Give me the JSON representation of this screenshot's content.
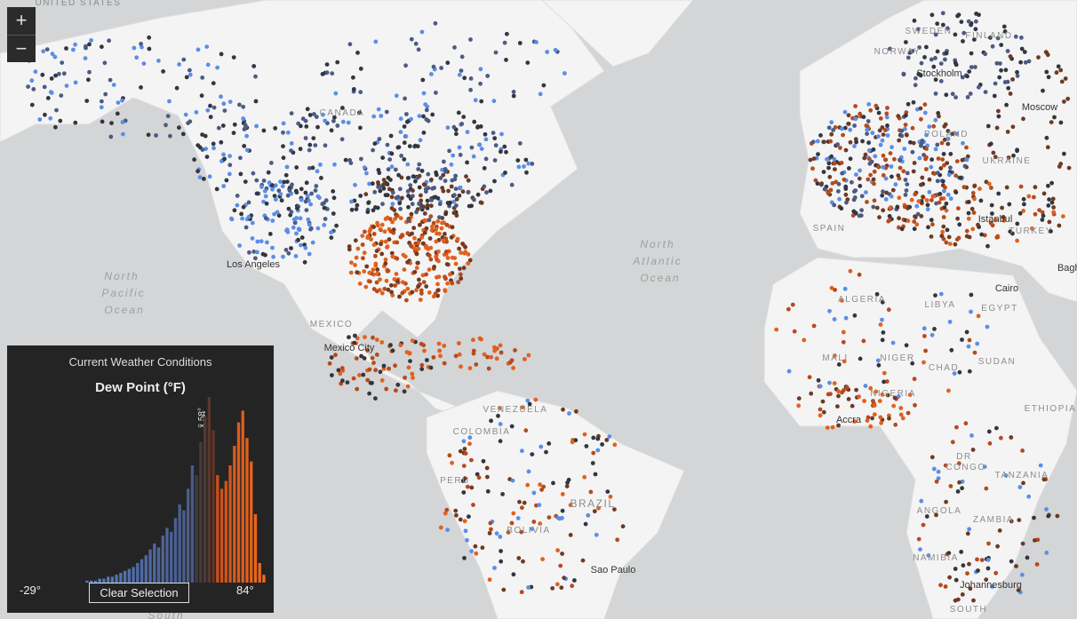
{
  "zoom": {
    "in": "+",
    "out": "−"
  },
  "map_labels": [
    "UNITED STATES",
    "CANADA",
    "North",
    "Pacific",
    "Ocean",
    "North",
    "Atlantic",
    "Ocean",
    "MEXICO",
    "Mexico City",
    "Los Angeles",
    "VENEZUELA",
    "COLOMBIA",
    "PERU",
    "BRAZIL",
    "BOLIVIA",
    "Sao Paulo",
    "SWEDEN",
    "FINLAND",
    "NORWAY",
    "Stockholm",
    "Moscow",
    "POLAND",
    "UKRAINE",
    "SPAIN",
    "Istanbul",
    "TURKEY",
    "ALGERIA",
    "LIBYA",
    "EGYPT",
    "Cairo",
    "MALI",
    "NIGER",
    "CHAD",
    "SUDAN",
    "NIGERIA",
    "ETHIOPIA",
    "Accra",
    "DR",
    "CONGO",
    "TANZANIA",
    "ANGOLA",
    "ZAMBIA",
    "NAMIBIA",
    "Johannesburg",
    "SOUTH",
    "South",
    "Baghdad"
  ],
  "widget": {
    "title": "Current Weather Conditions",
    "field": "Dew Point (°F)",
    "min_label": "-29°",
    "max_label": "84°",
    "mean_label": "x̄ 58°",
    "button": "Clear Selection",
    "histogram": {
      "bins": [
        -29,
        -27,
        -25,
        -23,
        -21,
        -19,
        -17,
        -15,
        -13,
        -11,
        -9,
        -7,
        -5,
        -3,
        -1,
        1,
        3,
        5,
        7,
        9,
        11,
        13,
        15,
        17,
        19,
        21,
        23,
        25,
        27,
        29,
        31,
        33,
        35,
        37,
        39,
        41,
        43,
        45,
        47,
        49,
        51,
        53,
        55,
        57,
        59,
        61,
        63,
        65,
        67,
        69,
        71,
        73,
        75,
        77,
        79,
        81,
        83,
        85
      ],
      "counts": [
        0,
        0,
        0,
        0,
        0,
        0,
        0,
        0,
        0,
        0,
        0,
        0,
        0,
        0,
        1,
        1,
        1,
        2,
        2,
        3,
        3,
        4,
        5,
        6,
        7,
        8,
        10,
        12,
        14,
        17,
        20,
        18,
        24,
        28,
        26,
        33,
        40,
        37,
        48,
        60,
        55,
        72,
        85,
        95,
        78,
        55,
        48,
        52,
        60,
        70,
        82,
        88,
        74,
        62,
        35,
        10,
        4
      ]
    }
  }
}
